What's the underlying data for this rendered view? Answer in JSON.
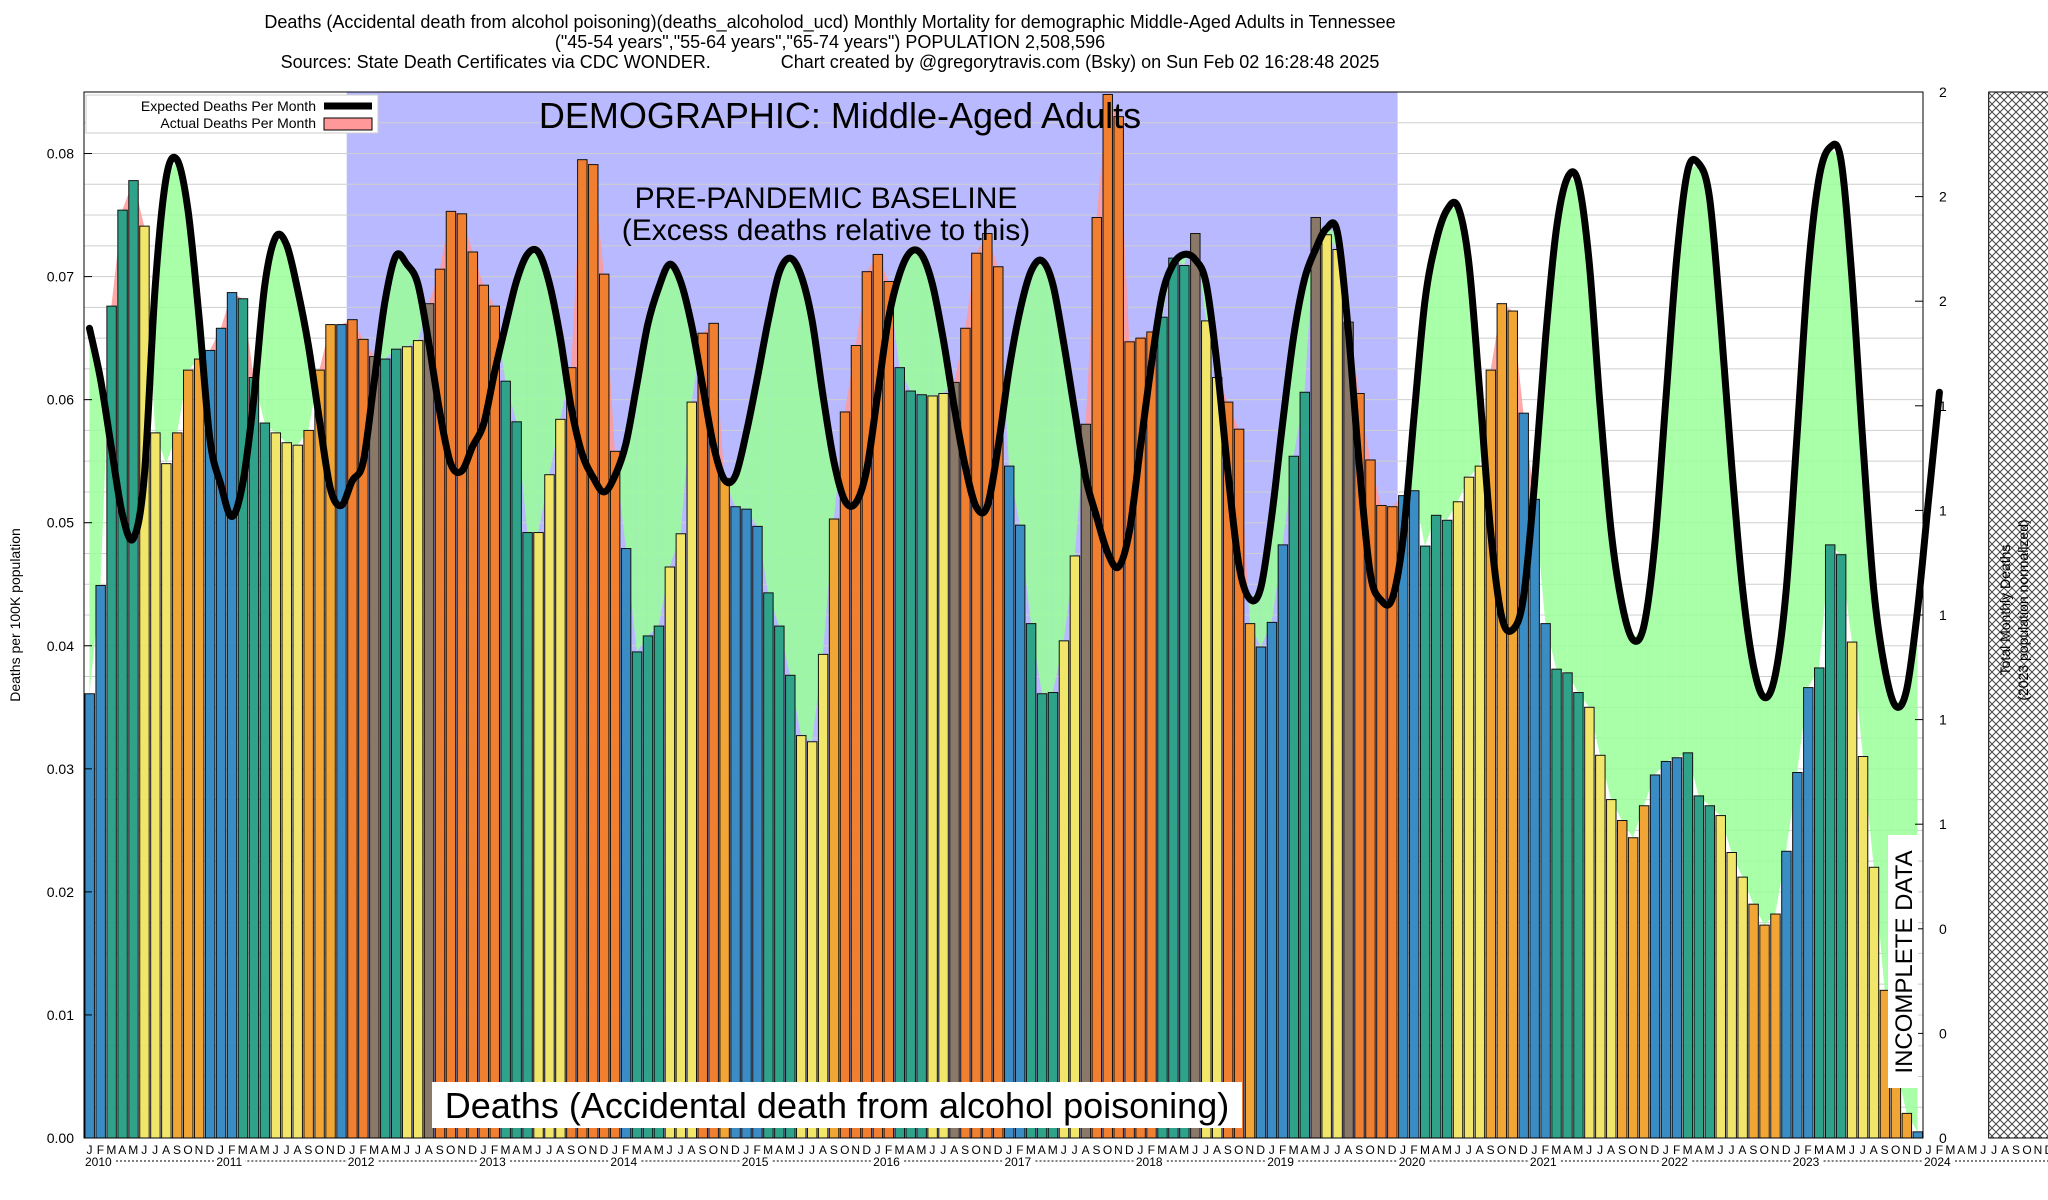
{
  "header": {
    "title_line1": "Deaths (Accidental death from alcohol poisoning)(deaths_alcoholod_ucd) Monthly Mortality for demographic Middle-Aged Adults in Tennessee",
    "title_line2": "(\"45-54 years\",\"55-64 years\",\"65-74 years\") POPULATION 2,508,596",
    "title_line3": "Sources: State Death Certificates via CDC WONDER.              Chart created by @gregorytravis.com (Bsky) on Sun Feb 02 16:28:48 2025"
  },
  "chart_data": {
    "type": "bar",
    "title": "Deaths (Accidental death from alcohol poisoning)(deaths_alcoholod_ucd) Monthly Mortality for demographic Middle-Aged Adults in Tennessee",
    "ylabel": "Deaths per 100K population",
    "y2label_line1": "Total Monthly Deaths",
    "y2label_line2": "(2023 population normalized)",
    "ylim": [
      0,
      0.085
    ],
    "yticks": [
      "0.00",
      "0.01",
      "0.02",
      "0.03",
      "0.04",
      "0.05",
      "0.06",
      "0.07",
      "0.08"
    ],
    "y2ticks": [
      "0",
      "0",
      "0",
      "1",
      "1",
      "1",
      "1",
      "1",
      "2",
      "2",
      "2"
    ],
    "grid": true,
    "legend_position": "top-left",
    "legend": {
      "expected": "Expected Deaths Per Month",
      "actual": "Actual Deaths Per Month"
    },
    "annotations": {
      "demographic": "DEMOGRAPHIC: Middle-Aged Adults",
      "baseline_line1": "PRE-PANDEMIC BASELINE",
      "baseline_line2": "(Excess deaths relative to this)",
      "incomplete": "INCOMPLETE DATA",
      "bottom_label": "Deaths (Accidental death from alcohol poisoning)"
    },
    "baseline_period": [
      "2012-01",
      "2019-12"
    ],
    "incomplete_period": [
      "2024-07",
      "2024-12"
    ],
    "month_letters": [
      "J",
      "F",
      "M",
      "A",
      "M",
      "J",
      "J",
      "A",
      "S",
      "O",
      "N",
      "D"
    ],
    "years": [
      "2010",
      "2011",
      "2012",
      "2013",
      "2014",
      "2015",
      "2016",
      "2017",
      "2018",
      "2019",
      "2020",
      "2021",
      "2022",
      "2023",
      "2024"
    ],
    "colors": {
      "winter": "#3a8cc4",
      "spring": "#2ea389",
      "summer": "#f2e66a",
      "fall": "#f0a535",
      "excess_fill": "#99ff99",
      "deficit_fill": "#ff9999",
      "baseline_band": "#b9b9ff",
      "expected_line": "#000000",
      "excess_bar": "#f08030",
      "deficit_bar": "#8a7868"
    },
    "series": [
      {
        "name": "Actual Deaths Per Month",
        "values": [
          0.0361,
          0.0449,
          0.0676,
          0.0754,
          0.0778,
          0.0741,
          0.0573,
          0.0548,
          0.0573,
          0.0624,
          0.0633,
          0.064,
          0.0658,
          0.0687,
          0.0682,
          0.0618,
          0.0581,
          0.0573,
          0.0565,
          0.0563,
          0.0575,
          0.0624,
          0.0661,
          0.0661,
          0.0665,
          0.0649,
          0.0635,
          0.0633,
          0.0641,
          0.0643,
          0.0648,
          0.0678,
          0.0706,
          0.0753,
          0.0751,
          0.072,
          0.0693,
          0.0676,
          0.0615,
          0.0582,
          0.0492,
          0.0492,
          0.0539,
          0.0584,
          0.0626,
          0.0795,
          0.0791,
          0.0702,
          0.0558,
          0.0479,
          0.0395,
          0.0408,
          0.0416,
          0.0464,
          0.0491,
          0.0598,
          0.0654,
          0.0662,
          0.0536,
          0.0513,
          0.0511,
          0.0497,
          0.0443,
          0.0416,
          0.0376,
          0.0327,
          0.0322,
          0.0393,
          0.0503,
          0.059,
          0.0644,
          0.0704,
          0.0718,
          0.0696,
          0.0626,
          0.0607,
          0.0604,
          0.0603,
          0.0605,
          0.0614,
          0.0658,
          0.0719,
          0.0735,
          0.0708,
          0.0546,
          0.0498,
          0.0418,
          0.0361,
          0.0362,
          0.0404,
          0.0473,
          0.058,
          0.0748,
          0.0848,
          0.083,
          0.0647,
          0.065,
          0.0655,
          0.0667,
          0.0715,
          0.0709,
          0.0735,
          0.0664,
          0.0618,
          0.0598,
          0.0576,
          0.0418,
          0.0399,
          0.0419,
          0.0482,
          0.0554,
          0.0606,
          0.0748,
          0.0734,
          0.0722,
          0.0663,
          0.0605,
          0.0551,
          0.0514,
          0.0513,
          0.0522,
          0.0526,
          0.0481,
          0.0506,
          0.0502,
          0.0517,
          0.0537,
          0.0546,
          0.0624,
          0.0678,
          0.0672,
          0.0589,
          0.0519,
          0.0418,
          0.0381,
          0.0378,
          0.0362,
          0.035,
          0.0311,
          0.0275,
          0.0258,
          0.0244,
          0.027,
          0.0295,
          0.0306,
          0.0309,
          0.0313,
          0.0278,
          0.027,
          0.0262,
          0.0232,
          0.0212,
          0.019,
          0.0173,
          0.0182,
          0.0233,
          0.0297,
          0.0366,
          0.0382,
          0.0482,
          0.0474,
          0.0403,
          0.031,
          0.022,
          0.012,
          0.006,
          0.002,
          0.0005
        ]
      },
      {
        "name": "Expected Deaths Per Month",
        "values": [
          0.0658,
          0.0617,
          0.0561,
          0.0507,
          0.0487,
          0.0537,
          0.0691,
          0.078,
          0.0795,
          0.0754,
          0.0668,
          0.0568,
          0.0531,
          0.0505,
          0.0532,
          0.06,
          0.0692,
          0.0732,
          0.0726,
          0.069,
          0.0644,
          0.0584,
          0.0528,
          0.0514,
          0.0534,
          0.0549,
          0.0614,
          0.068,
          0.0717,
          0.071,
          0.0694,
          0.0646,
          0.059,
          0.0548,
          0.0542,
          0.0562,
          0.058,
          0.0622,
          0.066,
          0.0696,
          0.0718,
          0.072,
          0.0695,
          0.0651,
          0.0594,
          0.0556,
          0.0537,
          0.0525,
          0.0538,
          0.0564,
          0.0612,
          0.0661,
          0.0691,
          0.071,
          0.0696,
          0.0661,
          0.0612,
          0.0563,
          0.0535,
          0.0538,
          0.0573,
          0.0617,
          0.0664,
          0.0703,
          0.0715,
          0.0701,
          0.0665,
          0.0604,
          0.055,
          0.0518,
          0.0516,
          0.0543,
          0.0604,
          0.0666,
          0.0702,
          0.072,
          0.0718,
          0.0694,
          0.0649,
          0.0594,
          0.0546,
          0.0513,
          0.0513,
          0.0561,
          0.0624,
          0.0672,
          0.0704,
          0.0713,
          0.0694,
          0.0646,
          0.0591,
          0.0537,
          0.0505,
          0.0476,
          0.0464,
          0.0493,
          0.0561,
          0.0628,
          0.0685,
          0.071,
          0.0718,
          0.0714,
          0.0695,
          0.0629,
          0.0541,
          0.0466,
          0.0438,
          0.0447,
          0.0505,
          0.0581,
          0.0651,
          0.0698,
          0.0722,
          0.0739,
          0.0736,
          0.0656,
          0.0547,
          0.0459,
          0.0437,
          0.0438,
          0.0487,
          0.0586,
          0.068,
          0.0728,
          0.0754,
          0.0757,
          0.0712,
          0.0607,
          0.0493,
          0.0424,
          0.0413,
          0.0439,
          0.0531,
          0.0648,
          0.0738,
          0.078,
          0.0777,
          0.0712,
          0.0595,
          0.0494,
          0.0434,
          0.0405,
          0.0416,
          0.0483,
          0.0599,
          0.0715,
          0.0786,
          0.0792,
          0.0764,
          0.0666,
          0.0549,
          0.0448,
          0.0384,
          0.0358,
          0.0376,
          0.0445,
          0.0572,
          0.0703,
          0.078,
          0.0805,
          0.0795,
          0.07,
          0.0566,
          0.0446,
          0.0382,
          0.0351,
          0.0364,
          0.0429,
          0.0518,
          0.0606
        ]
      }
    ]
  }
}
